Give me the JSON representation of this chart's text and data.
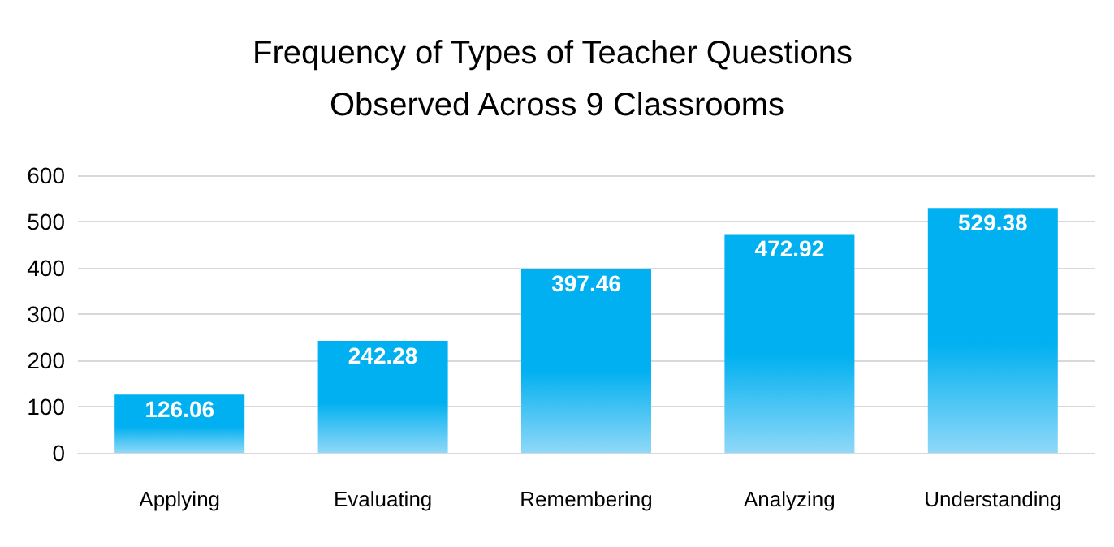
{
  "chart_data": {
    "type": "bar",
    "title": "Frequency of Types of Teacher Questions Observed Across 9 Classrooms",
    "categories": [
      "Applying",
      "Evaluating",
      "Remembering",
      "Analyzing",
      "Understanding"
    ],
    "values": [
      126.06,
      242.28,
      397.46,
      472.92,
      529.38
    ],
    "color": "#00b0f0",
    "ylim": [
      0,
      600
    ],
    "yticks": [
      0,
      100,
      200,
      300,
      400,
      500,
      600
    ],
    "grid": "y",
    "data_labels": true
  }
}
